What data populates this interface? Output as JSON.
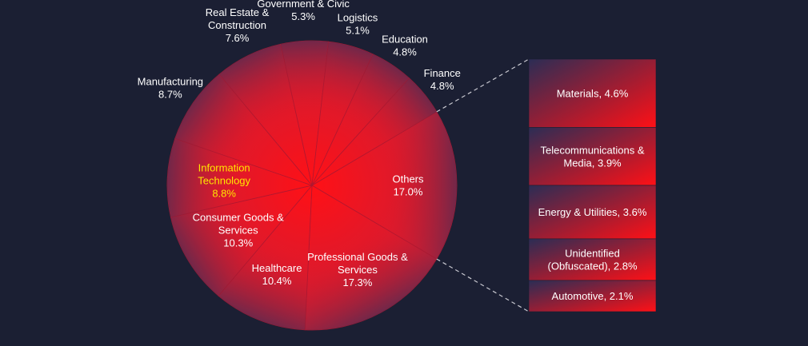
{
  "chart_data": {
    "type": "pie",
    "title": "",
    "colors": {
      "background": "#1b1f33",
      "slice_dark": "#2b2d55",
      "slice_bright": "#ff1016",
      "highlight_text": "#ffe600",
      "text": "#ffffff",
      "connector": "#c8c8d0"
    },
    "slices": [
      {
        "label": "Others",
        "value": 17.0,
        "label_lines": [
          "Others",
          "17.0%"
        ]
      },
      {
        "label": "Professional Goods & Services",
        "value": 17.3,
        "label_lines": [
          "Professional Goods &",
          "Services",
          "17.3%"
        ]
      },
      {
        "label": "Healthcare",
        "value": 10.4,
        "label_lines": [
          "Healthcare",
          "10.4%"
        ]
      },
      {
        "label": "Consumer Goods & Services",
        "value": 10.3,
        "label_lines": [
          "Consumer Goods &",
          "Services",
          "10.3%"
        ]
      },
      {
        "label": "Information Technology",
        "value": 8.8,
        "highlight": true,
        "label_lines": [
          "Information",
          "Technology",
          "8.8%"
        ]
      },
      {
        "label": "Manufacturing",
        "value": 8.7,
        "label_lines": [
          "Manufacturing",
          "8.7%"
        ]
      },
      {
        "label": "Real Estate & Construction",
        "value": 7.6,
        "label_lines": [
          "Real Estate &",
          "Construction",
          "7.6%"
        ]
      },
      {
        "label": "Government & Civic",
        "value": 5.3,
        "label_lines": [
          "Government & Civic",
          "5.3%"
        ]
      },
      {
        "label": "Logistics",
        "value": 5.1,
        "label_lines": [
          "Logistics",
          "5.1%"
        ]
      },
      {
        "label": "Education",
        "value": 4.8,
        "label_lines": [
          "Education",
          "4.8%"
        ]
      },
      {
        "label": "Finance",
        "value": 4.8,
        "label_lines": [
          "Finance",
          "4.8%"
        ]
      }
    ],
    "others_breakdown": [
      {
        "label": "Materials",
        "value": 4.6,
        "label_lines": [
          "Materials, 4.6%"
        ]
      },
      {
        "label": "Telecommunications & Media",
        "value": 3.9,
        "label_lines": [
          "Telecommunications &",
          "Media, 3.9%"
        ]
      },
      {
        "label": "Energy & Utilities",
        "value": 3.6,
        "label_lines": [
          "Energy & Utilities, 3.6%"
        ]
      },
      {
        "label": "Unidentified (Obfuscated)",
        "value": 2.8,
        "label_lines": [
          "Unidentified",
          "(Obfuscated), 2.8%"
        ]
      },
      {
        "label": "Automotive",
        "value": 2.1,
        "label_lines": [
          "Automotive, 2.1%"
        ]
      }
    ]
  }
}
